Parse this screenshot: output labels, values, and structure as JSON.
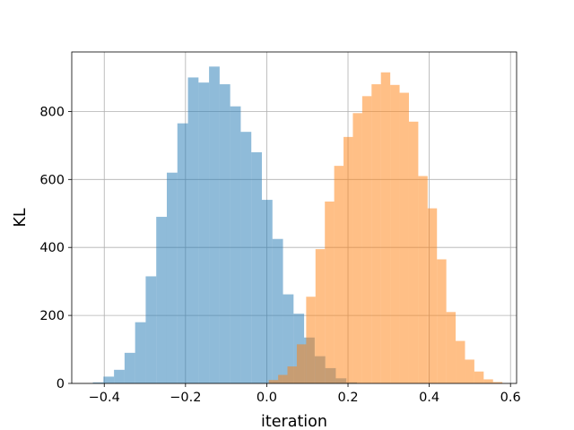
{
  "chart_data": {
    "type": "bar",
    "subtype": "overlapping-histogram",
    "xlabel": "iteration",
    "ylabel": "KL",
    "xlim": [
      -0.48,
      0.615
    ],
    "ylim": [
      0,
      975
    ],
    "x_ticks": [
      -0.4,
      -0.2,
      0.0,
      0.2,
      0.4,
      0.6
    ],
    "x_tick_labels": [
      "−0.4",
      "−0.2",
      "0.0",
      "0.2",
      "0.4",
      "0.6"
    ],
    "y_ticks": [
      0,
      200,
      400,
      600,
      800
    ],
    "y_tick_labels": [
      "0",
      "200",
      "400",
      "600",
      "800"
    ],
    "grid": true,
    "legend": "none",
    "series": [
      {
        "color": "#1f77b4",
        "opacity": 0.5,
        "bins": [
          {
            "x0": -0.428,
            "x1": -0.402,
            "count": 3
          },
          {
            "x0": -0.402,
            "x1": -0.376,
            "count": 20
          },
          {
            "x0": -0.376,
            "x1": -0.35,
            "count": 40
          },
          {
            "x0": -0.35,
            "x1": -0.324,
            "count": 90
          },
          {
            "x0": -0.324,
            "x1": -0.298,
            "count": 180
          },
          {
            "x0": -0.298,
            "x1": -0.272,
            "count": 315
          },
          {
            "x0": -0.272,
            "x1": -0.246,
            "count": 490
          },
          {
            "x0": -0.246,
            "x1": -0.22,
            "count": 620
          },
          {
            "x0": -0.22,
            "x1": -0.194,
            "count": 765
          },
          {
            "x0": -0.194,
            "x1": -0.168,
            "count": 900
          },
          {
            "x0": -0.168,
            "x1": -0.142,
            "count": 885
          },
          {
            "x0": -0.142,
            "x1": -0.116,
            "count": 932
          },
          {
            "x0": -0.116,
            "x1": -0.09,
            "count": 880
          },
          {
            "x0": -0.09,
            "x1": -0.064,
            "count": 815
          },
          {
            "x0": -0.064,
            "x1": -0.038,
            "count": 740
          },
          {
            "x0": -0.038,
            "x1": -0.012,
            "count": 680
          },
          {
            "x0": -0.012,
            "x1": 0.014,
            "count": 540
          },
          {
            "x0": 0.014,
            "x1": 0.04,
            "count": 425
          },
          {
            "x0": 0.04,
            "x1": 0.066,
            "count": 262
          },
          {
            "x0": 0.066,
            "x1": 0.092,
            "count": 205
          },
          {
            "x0": 0.092,
            "x1": 0.118,
            "count": 135
          },
          {
            "x0": 0.118,
            "x1": 0.144,
            "count": 80
          },
          {
            "x0": 0.144,
            "x1": 0.17,
            "count": 45
          },
          {
            "x0": 0.17,
            "x1": 0.196,
            "count": 15
          },
          {
            "x0": 0.196,
            "x1": 0.222,
            "count": 3
          }
        ]
      },
      {
        "color": "#ff7f0e",
        "opacity": 0.5,
        "bins": [
          {
            "x0": 0.005,
            "x1": 0.028,
            "count": 10
          },
          {
            "x0": 0.028,
            "x1": 0.051,
            "count": 25
          },
          {
            "x0": 0.051,
            "x1": 0.074,
            "count": 50
          },
          {
            "x0": 0.074,
            "x1": 0.097,
            "count": 115
          },
          {
            "x0": 0.097,
            "x1": 0.12,
            "count": 255
          },
          {
            "x0": 0.12,
            "x1": 0.143,
            "count": 395
          },
          {
            "x0": 0.143,
            "x1": 0.166,
            "count": 535
          },
          {
            "x0": 0.166,
            "x1": 0.189,
            "count": 640
          },
          {
            "x0": 0.189,
            "x1": 0.212,
            "count": 725
          },
          {
            "x0": 0.212,
            "x1": 0.235,
            "count": 795
          },
          {
            "x0": 0.235,
            "x1": 0.258,
            "count": 845
          },
          {
            "x0": 0.258,
            "x1": 0.281,
            "count": 880
          },
          {
            "x0": 0.281,
            "x1": 0.304,
            "count": 915
          },
          {
            "x0": 0.304,
            "x1": 0.327,
            "count": 878
          },
          {
            "x0": 0.327,
            "x1": 0.35,
            "count": 855
          },
          {
            "x0": 0.35,
            "x1": 0.373,
            "count": 770
          },
          {
            "x0": 0.373,
            "x1": 0.396,
            "count": 610
          },
          {
            "x0": 0.396,
            "x1": 0.419,
            "count": 515
          },
          {
            "x0": 0.419,
            "x1": 0.442,
            "count": 365
          },
          {
            "x0": 0.442,
            "x1": 0.465,
            "count": 210
          },
          {
            "x0": 0.465,
            "x1": 0.488,
            "count": 125
          },
          {
            "x0": 0.488,
            "x1": 0.511,
            "count": 70
          },
          {
            "x0": 0.511,
            "x1": 0.534,
            "count": 35
          },
          {
            "x0": 0.534,
            "x1": 0.557,
            "count": 12
          },
          {
            "x0": 0.557,
            "x1": 0.58,
            "count": 4
          }
        ]
      }
    ]
  }
}
